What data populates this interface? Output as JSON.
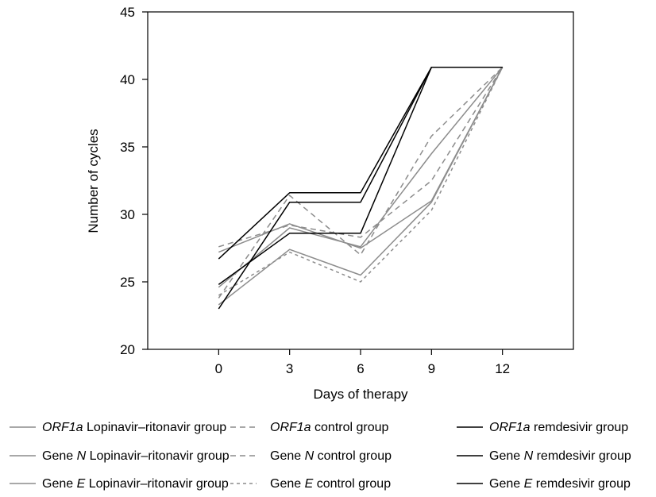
{
  "chart_data": {
    "type": "line",
    "xlabel": "Days of therapy",
    "ylabel": "Number of cycles",
    "x": [
      0,
      3,
      6,
      9,
      12
    ],
    "xlim": [
      -3,
      15
    ],
    "ylim": [
      20,
      45
    ],
    "yticks": [
      20,
      25,
      30,
      35,
      40,
      45
    ],
    "grid": false,
    "legend_position": "bottom",
    "colors": {
      "lopinavir": "#8c8c8c",
      "control": "#8c8c8c",
      "remdesivir": "#000000"
    },
    "series": [
      {
        "name_prefix": "",
        "gene": "ORF1a",
        "name_suffix": " Lopinavir–ritonavir group",
        "group": "lopinavir",
        "dash": "solid",
        "values": [
          24.6,
          29.0,
          27.6,
          34.5,
          40.9
        ]
      },
      {
        "name_prefix": "Gene ",
        "gene": "N",
        "name_suffix": " Lopinavir–ritonavir group",
        "group": "lopinavir",
        "dash": "solid",
        "values": [
          27.2,
          29.3,
          27.5,
          31.0,
          40.9
        ]
      },
      {
        "name_prefix": "Gene ",
        "gene": "E",
        "name_suffix": " Lopinavir–ritonavir group",
        "group": "lopinavir",
        "dash": "solid",
        "values": [
          23.3,
          27.4,
          25.5,
          30.9,
          40.9
        ]
      },
      {
        "name_prefix": "",
        "gene": "ORF1a",
        "name_suffix": " control group",
        "group": "control",
        "dash": "dashed",
        "values": [
          23.8,
          31.4,
          27.0,
          35.8,
          40.9
        ]
      },
      {
        "name_prefix": "Gene ",
        "gene": "N",
        "name_suffix": " control group",
        "group": "control",
        "dash": "dashed",
        "values": [
          27.6,
          29.2,
          28.3,
          32.5,
          40.9
        ]
      },
      {
        "name_prefix": "Gene ",
        "gene": "E",
        "name_suffix": " control group",
        "group": "control",
        "dash": "dotted",
        "values": [
          24.0,
          27.2,
          25.0,
          30.3,
          40.9
        ]
      },
      {
        "name_prefix": "",
        "gene": "ORF1a",
        "name_suffix": " remdesivir group",
        "group": "remdesivir",
        "dash": "solid",
        "values": [
          26.7,
          31.6,
          31.6,
          40.9,
          40.9
        ]
      },
      {
        "name_prefix": "Gene ",
        "gene": "N",
        "name_suffix": " remdesivir group",
        "group": "remdesivir",
        "dash": "solid",
        "values": [
          23.0,
          30.9,
          30.9,
          40.9,
          40.9
        ]
      },
      {
        "name_prefix": "Gene ",
        "gene": "E",
        "name_suffix": " remdesivir group",
        "group": "remdesivir",
        "dash": "solid",
        "values": [
          24.8,
          28.6,
          28.6,
          40.9,
          40.9
        ]
      }
    ]
  }
}
